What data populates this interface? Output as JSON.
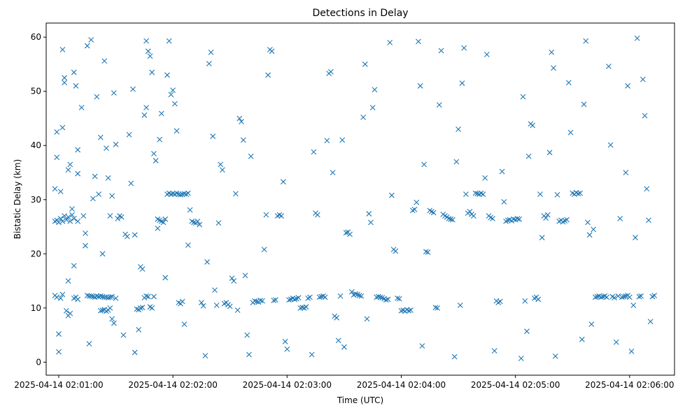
{
  "chart_data": {
    "type": "scatter",
    "title": "Detections in Delay",
    "xlabel": "Time (UTC)",
    "ylabel": "Bistatic Delay (km)",
    "x_unit": "seconds after 2025-04-14 02:00:00",
    "xlim": [
      53.4,
      383.6
    ],
    "ylim": [
      -2.4,
      62.6
    ],
    "grid": false,
    "marker": "x",
    "color": "#1f77b4",
    "x_ticks": [
      {
        "value": 60,
        "label": "2025-04-14 02:01:00"
      },
      {
        "value": 120,
        "label": "2025-04-14 02:02:00"
      },
      {
        "value": 180,
        "label": "2025-04-14 02:03:00"
      },
      {
        "value": 240,
        "label": "2025-04-14 02:04:00"
      },
      {
        "value": 300,
        "label": "2025-04-14 02:05:00"
      },
      {
        "value": 360,
        "label": "2025-04-14 02:06:00"
      }
    ],
    "y_ticks": [
      {
        "value": 0,
        "label": "0"
      },
      {
        "value": 10,
        "label": "10"
      },
      {
        "value": 20,
        "label": "20"
      },
      {
        "value": 30,
        "label": "30"
      },
      {
        "value": 40,
        "label": "40"
      },
      {
        "value": 50,
        "label": "50"
      },
      {
        "value": 60,
        "label": "60"
      }
    ],
    "points": [
      [
        58,
        26
      ],
      [
        59,
        26.2
      ],
      [
        60,
        25.8
      ],
      [
        61,
        26.5
      ],
      [
        62,
        26
      ],
      [
        63,
        27
      ],
      [
        64,
        26.3
      ],
      [
        65,
        26.8
      ],
      [
        66,
        26
      ],
      [
        67,
        27.2
      ],
      [
        68,
        26.5
      ],
      [
        70,
        26
      ],
      [
        58,
        12.3
      ],
      [
        59,
        12
      ],
      [
        61,
        11.8
      ],
      [
        62,
        12.5
      ],
      [
        64,
        9.5
      ],
      [
        65,
        8.6
      ],
      [
        66,
        9
      ],
      [
        68,
        11.8
      ],
      [
        69,
        12
      ],
      [
        70,
        11.6
      ],
      [
        58,
        32
      ],
      [
        59,
        37.8
      ],
      [
        59,
        42.5
      ],
      [
        61,
        31.5
      ],
      [
        62,
        43.3
      ],
      [
        62,
        57.7
      ],
      [
        63,
        52.5
      ],
      [
        63,
        51.6
      ],
      [
        65,
        35.5
      ],
      [
        65,
        15
      ],
      [
        66,
        36.5
      ],
      [
        67,
        28.3
      ],
      [
        68,
        17.8
      ],
      [
        68,
        53.5
      ],
      [
        69,
        51
      ],
      [
        70,
        34.8
      ],
      [
        70,
        39.2
      ],
      [
        60,
        1.9
      ],
      [
        60,
        5.2
      ],
      [
        72,
        47
      ],
      [
        73,
        27
      ],
      [
        74,
        21.5
      ],
      [
        74,
        23.8
      ],
      [
        75,
        12.3
      ],
      [
        76,
        12.2
      ],
      [
        77,
        12.2
      ],
      [
        78,
        12.1
      ],
      [
        79,
        12
      ],
      [
        80,
        12.2
      ],
      [
        81,
        12.1
      ],
      [
        82,
        12.2
      ],
      [
        83,
        12.1
      ],
      [
        84,
        12
      ],
      [
        85,
        12
      ],
      [
        86,
        11.9
      ],
      [
        87,
        12
      ],
      [
        88,
        12.1
      ],
      [
        90,
        11.8
      ],
      [
        75,
        58.4
      ],
      [
        76,
        3.4
      ],
      [
        77,
        59.5
      ],
      [
        78,
        30.2
      ],
      [
        79,
        34.3
      ],
      [
        80,
        49
      ],
      [
        81,
        31
      ],
      [
        82,
        9.5
      ],
      [
        83,
        9.6
      ],
      [
        84,
        9.7
      ],
      [
        85,
        9.4
      ],
      [
        86,
        9.6
      ],
      [
        87,
        10
      ],
      [
        88,
        8
      ],
      [
        89,
        7.2
      ],
      [
        82,
        41.5
      ],
      [
        83,
        20
      ],
      [
        84,
        55.6
      ],
      [
        85,
        39.5
      ],
      [
        86,
        34
      ],
      [
        87,
        27
      ],
      [
        88,
        30.7
      ],
      [
        89,
        49.7
      ],
      [
        90,
        40.2
      ],
      [
        91,
        26.5
      ],
      [
        92,
        27
      ],
      [
        93,
        26.8
      ],
      [
        94,
        5
      ],
      [
        95,
        23.6
      ],
      [
        96,
        23.2
      ],
      [
        97,
        42
      ],
      [
        98,
        33
      ],
      [
        99,
        50.4
      ],
      [
        100,
        23.5
      ],
      [
        101,
        9.8
      ],
      [
        102,
        9.7
      ],
      [
        103,
        10
      ],
      [
        104,
        10.1
      ],
      [
        105,
        11.9
      ],
      [
        106,
        12.2
      ],
      [
        107,
        12.1
      ],
      [
        108,
        10.2
      ],
      [
        109,
        10
      ],
      [
        110,
        12.1
      ],
      [
        100,
        1.8
      ],
      [
        102,
        6
      ],
      [
        103,
        17.6
      ],
      [
        104,
        17.2
      ],
      [
        105,
        45.6
      ],
      [
        106,
        47
      ],
      [
        106,
        59.3
      ],
      [
        107,
        57.4
      ],
      [
        108,
        56.5
      ],
      [
        109,
        53.5
      ],
      [
        110,
        38.5
      ],
      [
        111,
        37.2
      ],
      [
        112,
        26.4
      ],
      [
        113,
        26.2
      ],
      [
        114,
        26
      ],
      [
        115,
        25.8
      ],
      [
        116,
        26.4
      ],
      [
        112,
        24.7
      ],
      [
        113,
        41.1
      ],
      [
        114,
        45.9
      ],
      [
        117,
        31
      ],
      [
        118,
        31.2
      ],
      [
        119,
        31
      ],
      [
        120,
        31.1
      ],
      [
        121,
        31
      ],
      [
        122,
        31.2
      ],
      [
        123,
        31
      ],
      [
        124,
        30.9
      ],
      [
        125,
        31
      ],
      [
        126,
        31.1
      ],
      [
        127,
        31
      ],
      [
        128,
        31.2
      ],
      [
        116,
        15.6
      ],
      [
        117,
        53
      ],
      [
        118,
        59.3
      ],
      [
        119,
        49.4
      ],
      [
        120,
        50.2
      ],
      [
        121,
        47.7
      ],
      [
        122,
        42.7
      ],
      [
        123,
        11
      ],
      [
        124,
        10.8
      ],
      [
        125,
        11.2
      ],
      [
        126,
        7
      ],
      [
        128,
        21.6
      ],
      [
        129,
        28.1
      ],
      [
        130,
        26
      ],
      [
        131,
        25.8
      ],
      [
        132,
        25.7
      ],
      [
        133,
        26
      ],
      [
        134,
        25.4
      ],
      [
        135,
        11
      ],
      [
        136,
        10.4
      ],
      [
        137,
        1.2
      ],
      [
        138,
        18.5
      ],
      [
        139,
        55.1
      ],
      [
        140,
        57.2
      ],
      [
        141,
        41.7
      ],
      [
        142,
        13.3
      ],
      [
        143,
        10.5
      ],
      [
        144,
        25.7
      ],
      [
        145,
        36.5
      ],
      [
        146,
        35.5
      ],
      [
        147,
        10.8
      ],
      [
        148,
        11
      ],
      [
        149,
        10.6
      ],
      [
        150,
        10.3
      ],
      [
        151,
        15.5
      ],
      [
        152,
        15
      ],
      [
        153,
        31.1
      ],
      [
        154,
        9.6
      ],
      [
        155,
        45
      ],
      [
        156,
        44.4
      ],
      [
        157,
        41
      ],
      [
        158,
        16
      ],
      [
        159,
        5
      ],
      [
        160,
        1.4
      ],
      [
        161,
        38
      ],
      [
        162,
        11
      ],
      [
        163,
        11.3
      ],
      [
        164,
        11.2
      ],
      [
        165,
        11.1
      ],
      [
        166,
        11.4
      ],
      [
        167,
        11.3
      ],
      [
        168,
        20.8
      ],
      [
        169,
        27.2
      ],
      [
        170,
        53
      ],
      [
        171,
        57.7
      ],
      [
        172,
        57.4
      ],
      [
        173,
        11.4
      ],
      [
        174,
        11.5
      ],
      [
        175,
        27
      ],
      [
        176,
        27.2
      ],
      [
        177,
        27
      ],
      [
        178,
        33.3
      ],
      [
        179,
        3.8
      ],
      [
        180,
        2.4
      ],
      [
        181,
        11.5
      ],
      [
        182,
        11.6
      ],
      [
        183,
        11.8
      ],
      [
        184,
        11.6
      ],
      [
        185,
        11.7
      ],
      [
        186,
        11.9
      ],
      [
        187,
        10
      ],
      [
        188,
        10.1
      ],
      [
        189,
        10
      ],
      [
        190,
        10.2
      ],
      [
        191,
        11.8
      ],
      [
        192,
        12
      ],
      [
        193,
        1.4
      ],
      [
        194,
        38.8
      ],
      [
        195,
        27.5
      ],
      [
        196,
        27.2
      ],
      [
        197,
        12
      ],
      [
        198,
        12.1
      ],
      [
        199,
        12.2
      ],
      [
        200,
        12
      ],
      [
        201,
        40.9
      ],
      [
        202,
        53.3
      ],
      [
        203,
        53.6
      ],
      [
        204,
        35
      ],
      [
        205,
        8.5
      ],
      [
        206,
        8.2
      ],
      [
        207,
        4
      ],
      [
        208,
        12.2
      ],
      [
        209,
        41
      ],
      [
        210,
        2.8
      ],
      [
        211,
        23.9
      ],
      [
        212,
        24
      ],
      [
        213,
        23.6
      ],
      [
        214,
        13
      ],
      [
        215,
        12.4
      ],
      [
        216,
        12.6
      ],
      [
        217,
        12.5
      ],
      [
        218,
        12.3
      ],
      [
        219,
        12.2
      ],
      [
        220,
        45.2
      ],
      [
        221,
        55
      ],
      [
        222,
        8
      ],
      [
        223,
        27.4
      ],
      [
        224,
        25.8
      ],
      [
        225,
        47
      ],
      [
        226,
        50.3
      ],
      [
        227,
        12
      ],
      [
        228,
        12.1
      ],
      [
        229,
        12
      ],
      [
        230,
        11.9
      ],
      [
        231,
        11.7
      ],
      [
        232,
        11.5
      ],
      [
        233,
        11.6
      ],
      [
        234,
        59
      ],
      [
        235,
        30.8
      ],
      [
        236,
        20.8
      ],
      [
        237,
        20.5
      ],
      [
        238,
        11.8
      ],
      [
        239,
        11.7
      ],
      [
        240,
        9.5
      ],
      [
        241,
        9.6
      ],
      [
        242,
        9.4
      ],
      [
        243,
        9.7
      ],
      [
        244,
        9.5
      ],
      [
        245,
        9.6
      ],
      [
        246,
        28
      ],
      [
        247,
        28.2
      ],
      [
        248,
        29.5
      ],
      [
        249,
        59.2
      ],
      [
        250,
        51
      ],
      [
        251,
        3
      ],
      [
        252,
        36.5
      ],
      [
        253,
        20.4
      ],
      [
        254,
        20.3
      ],
      [
        255,
        28
      ],
      [
        256,
        27.8
      ],
      [
        257,
        27.6
      ],
      [
        258,
        10.1
      ],
      [
        259,
        10
      ],
      [
        260,
        47.5
      ],
      [
        261,
        57.5
      ],
      [
        262,
        27.3
      ],
      [
        263,
        27
      ],
      [
        264,
        26.8
      ],
      [
        265,
        26.5
      ],
      [
        266,
        26.4
      ],
      [
        267,
        26.3
      ],
      [
        268,
        1
      ],
      [
        269,
        37
      ],
      [
        270,
        43
      ],
      [
        271,
        10.5
      ],
      [
        272,
        51.5
      ],
      [
        273,
        58
      ],
      [
        274,
        31
      ],
      [
        275,
        27.5
      ],
      [
        276,
        27.8
      ],
      [
        277,
        27.3
      ],
      [
        278,
        27
      ],
      [
        279,
        31.2
      ],
      [
        280,
        31.1
      ],
      [
        281,
        31
      ],
      [
        282,
        31.2
      ],
      [
        283,
        31
      ],
      [
        284,
        34
      ],
      [
        285,
        56.8
      ],
      [
        286,
        27
      ],
      [
        287,
        26.7
      ],
      [
        288,
        26.5
      ],
      [
        289,
        2.1
      ],
      [
        290,
        11.3
      ],
      [
        291,
        11
      ],
      [
        292,
        11.2
      ],
      [
        293,
        35.2
      ],
      [
        294,
        29.6
      ],
      [
        295,
        26
      ],
      [
        296,
        26.2
      ],
      [
        297,
        26.3
      ],
      [
        298,
        26.1
      ],
      [
        299,
        26.4
      ],
      [
        300,
        26.3
      ],
      [
        301,
        26.5
      ],
      [
        302,
        26.4
      ],
      [
        303,
        0.7
      ],
      [
        304,
        49
      ],
      [
        305,
        11.3
      ],
      [
        306,
        5.7
      ],
      [
        307,
        38
      ],
      [
        308,
        44
      ],
      [
        309,
        43.7
      ],
      [
        310,
        11.8
      ],
      [
        311,
        12
      ],
      [
        312,
        11.6
      ],
      [
        313,
        31
      ],
      [
        314,
        23
      ],
      [
        315,
        27
      ],
      [
        316,
        26.6
      ],
      [
        317,
        27.2
      ],
      [
        318,
        38.7
      ],
      [
        319,
        57.2
      ],
      [
        320,
        54.3
      ],
      [
        321,
        1.1
      ],
      [
        322,
        30.9
      ],
      [
        323,
        26
      ],
      [
        324,
        26.2
      ],
      [
        325,
        25.9
      ],
      [
        326,
        26.1
      ],
      [
        327,
        26.3
      ],
      [
        328,
        51.6
      ],
      [
        329,
        42.4
      ],
      [
        330,
        31.2
      ],
      [
        331,
        31
      ],
      [
        332,
        31.3
      ],
      [
        333,
        31.1
      ],
      [
        334,
        31.2
      ],
      [
        335,
        4.2
      ],
      [
        336,
        47.6
      ],
      [
        337,
        59.3
      ],
      [
        338,
        25.8
      ],
      [
        339,
        23.5
      ],
      [
        340,
        7
      ],
      [
        341,
        24.5
      ],
      [
        342,
        12
      ],
      [
        343,
        12.1
      ],
      [
        344,
        12.2
      ],
      [
        345,
        12
      ],
      [
        346,
        12.1
      ],
      [
        347,
        12.2
      ],
      [
        348,
        12
      ],
      [
        349,
        54.6
      ],
      [
        350,
        40.1
      ],
      [
        351,
        12.1
      ],
      [
        352,
        11.9
      ],
      [
        353,
        3.7
      ],
      [
        354,
        12.2
      ],
      [
        355,
        26.5
      ],
      [
        356,
        12
      ],
      [
        357,
        12.1
      ],
      [
        358,
        12.2
      ],
      [
        359,
        12.3
      ],
      [
        360,
        12
      ],
      [
        361,
        2
      ],
      [
        362,
        10.5
      ],
      [
        363,
        23
      ],
      [
        364,
        59.8
      ],
      [
        365,
        12.1
      ],
      [
        366,
        12.2
      ],
      [
        367,
        52.2
      ],
      [
        368,
        45.5
      ],
      [
        369,
        32
      ],
      [
        370,
        26.2
      ],
      [
        371,
        7.5
      ],
      [
        372,
        12.1
      ],
      [
        373,
        12.3
      ],
      [
        358,
        35
      ],
      [
        359,
        51
      ]
    ]
  }
}
